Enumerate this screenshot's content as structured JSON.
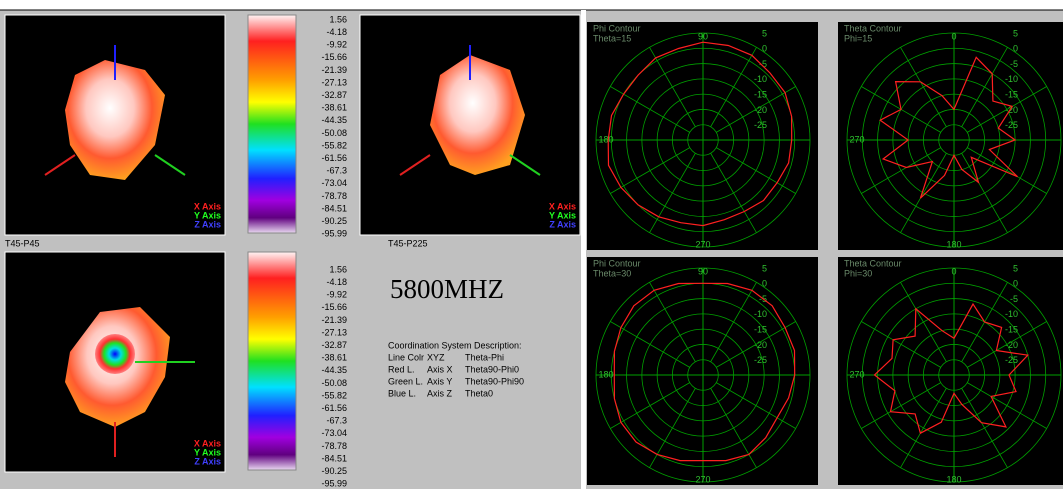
{
  "views": [
    {
      "label": "T45-P45",
      "legend": [
        "X Axis",
        "Y Axis",
        "Z Axis"
      ]
    },
    {
      "label": "T45-P225",
      "legend": [
        "X Axis",
        "Y Axis",
        "Z Axis"
      ]
    },
    {
      "legend": [
        "X Axis",
        "Y Axis",
        "Z Axis"
      ]
    }
  ],
  "scale": [
    1.56,
    -4.18,
    -9.92,
    -15.66,
    -21.39,
    -27.13,
    -32.87,
    -38.61,
    -44.35,
    -50.08,
    -55.82,
    -61.56,
    -67.3,
    -73.04,
    -78.78,
    -84.51,
    -90.25,
    -95.99
  ],
  "frequency": "5800MHZ",
  "coordination": {
    "title": "Coordination System Description:",
    "rows": [
      [
        "Line Colr",
        "XYZ",
        "Theta-Phi"
      ],
      [
        "Red L.",
        "Axis X",
        "Theta90-Phi0"
      ],
      [
        "Green L.",
        "Axis Y",
        "Theta90-Phi90"
      ],
      [
        "Blue L.",
        "Axis Z",
        "Theta0"
      ]
    ]
  },
  "polar": [
    {
      "title": "Phi Contour",
      "subtitle": "Theta=15",
      "angle_labels": [
        90,
        180,
        270
      ],
      "rticks": [
        5,
        0,
        -5,
        -10,
        -15,
        -20,
        -25
      ],
      "rlim": [
        -30,
        5
      ],
      "values": [
        -1,
        0,
        1,
        1,
        2,
        2,
        2,
        1,
        1,
        0,
        0,
        1,
        1,
        2,
        1,
        0,
        -1,
        -2,
        -2,
        -3,
        -3,
        -2,
        -2,
        -1
      ]
    },
    {
      "title": "Theta Contour",
      "subtitle": "Phi=15",
      "angle_labels": [
        0,
        270,
        180
      ],
      "rticks": [
        5,
        0,
        -5,
        -10,
        -15,
        -20,
        -25
      ],
      "rlim": [
        -30,
        5
      ],
      "values": [
        -20,
        -2,
        -5,
        -12,
        -8,
        -15,
        -10,
        -18,
        -6,
        -22,
        -14,
        -20,
        -25,
        -18,
        -8,
        -20,
        -12,
        -6,
        -15,
        -5,
        -10,
        -3,
        -8,
        -15
      ]
    },
    {
      "title": "Phi Contour",
      "subtitle": "Theta=30",
      "angle_labels": [
        90,
        180,
        270
      ],
      "rticks": [
        5,
        0,
        -5,
        -10,
        -15,
        -20,
        -25
      ],
      "rlim": [
        -30,
        5
      ],
      "values": [
        0,
        1,
        1,
        2,
        2,
        1,
        0,
        1,
        2,
        2,
        1,
        0,
        -1,
        0,
        1,
        1,
        0,
        -1,
        -2,
        -1,
        0,
        -1,
        -2,
        -1
      ]
    },
    {
      "title": "Theta Contour",
      "subtitle": "Phi=30",
      "angle_labels": [
        0,
        270,
        180
      ],
      "rticks": [
        5,
        0,
        -5,
        -10,
        -15,
        -20,
        -25
      ],
      "rlim": [
        -30,
        5
      ],
      "values": [
        -18,
        -6,
        -10,
        -8,
        -14,
        -5,
        -12,
        -9,
        -16,
        -6,
        -12,
        -20,
        -24,
        -14,
        -8,
        -12,
        -6,
        -10,
        -4,
        -9,
        -7,
        -12,
        -5,
        -15
      ]
    }
  ]
}
